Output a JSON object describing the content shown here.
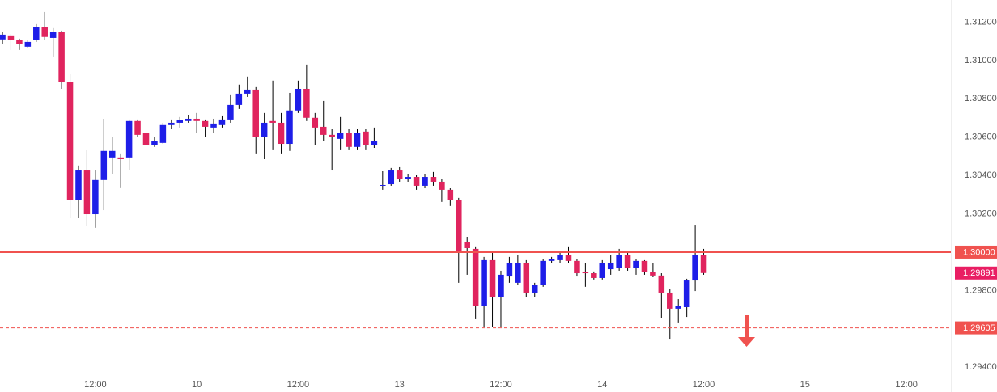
{
  "chart_data": {
    "type": "candlestick",
    "up_color": "#1e1ee8",
    "down_color": "#e0245e",
    "wick_color": "#000000",
    "grid": false,
    "x": [
      0,
      1,
      2,
      3,
      4,
      5,
      6,
      7,
      8,
      9,
      10,
      11,
      12,
      13,
      14,
      15,
      16,
      17,
      18,
      19,
      20,
      21,
      22,
      23,
      24,
      25,
      26,
      27,
      28,
      29,
      30,
      31,
      32,
      33,
      34,
      35,
      36,
      37,
      38,
      39,
      40,
      41,
      42,
      43,
      44,
      45,
      46,
      47,
      48,
      49,
      50,
      51,
      52,
      53,
      54,
      55,
      56,
      57,
      58,
      59,
      60,
      61,
      62,
      63,
      64,
      65,
      66,
      67,
      68,
      69,
      70,
      71,
      72,
      73,
      74,
      75,
      76,
      77,
      78,
      79,
      80,
      81,
      82,
      83
    ],
    "open": [
      1.3111,
      1.31131,
      1.31106,
      1.31072,
      1.31106,
      1.31173,
      1.31118,
      1.31148,
      1.30886,
      1.30274,
      1.3043,
      1.30198,
      1.30376,
      1.30494,
      1.30494,
      1.30494,
      1.30684,
      1.3062,
      1.30557,
      1.3057,
      1.30663,
      1.30675,
      1.30684,
      1.30696,
      1.30684,
      1.3065,
      1.30663,
      1.30692,
      1.30768,
      1.30827,
      1.30848,
      1.30599,
      1.30684,
      1.30675,
      1.30565,
      1.30739,
      1.30852,
      1.30701,
      1.30654,
      1.30612,
      1.30591,
      1.3062,
      1.30549,
      1.30629,
      1.30557,
      1.30346,
      1.30354,
      1.3043,
      1.3038,
      1.30392,
      1.30346,
      1.30392,
      1.30367,
      1.30325,
      1.30274,
      1.30051,
      1.30017,
      1.29721,
      1.29958,
      1.29764,
      1.29873,
      1.2984,
      1.29945,
      1.29789,
      1.29831,
      1.29954,
      1.29958,
      1.29987,
      1.29954,
      1.29895,
      1.2989,
      1.29865,
      1.29911,
      1.29916,
      1.29987,
      1.29916,
      1.29954,
      1.29895,
      1.29878,
      1.29789,
      1.29705,
      1.29713,
      1.29852,
      1.29987
    ],
    "high": [
      1.31148,
      1.31139,
      1.31114,
      1.31106,
      1.3119,
      1.31253,
      1.31169,
      1.31156,
      1.30928,
      1.30452,
      1.30536,
      1.3043,
      1.30696,
      1.30599,
      1.30515,
      1.30692,
      1.30692,
      1.30641,
      1.30599,
      1.30675,
      1.30692,
      1.30705,
      1.30717,
      1.30726,
      1.30692,
      1.30696,
      1.30713,
      1.30823,
      1.30874,
      1.30916,
      1.30861,
      1.30726,
      1.30895,
      1.30726,
      1.30831,
      1.30895,
      1.30979,
      1.30726,
      1.30789,
      1.30641,
      1.30705,
      1.30641,
      1.30641,
      1.30641,
      1.3065,
      1.30422,
      1.30439,
      1.30443,
      1.30409,
      1.30401,
      1.30409,
      1.30418,
      1.3038,
      1.30333,
      1.30283,
      1.3008,
      1.3003,
      1.29975,
      1.30008,
      1.29903,
      1.29975,
      1.29987,
      1.29958,
      1.2984,
      1.29966,
      1.29975,
      1.30008,
      1.3003,
      1.29966,
      1.29945,
      1.29899,
      1.29958,
      1.29987,
      1.30017,
      1.30008,
      1.29966,
      1.29958,
      1.29945,
      1.2989,
      1.29806,
      1.29755,
      1.29861,
      1.30143,
      1.30017
    ],
    "low": [
      1.31085,
      1.31055,
      1.31055,
      1.31063,
      1.31097,
      1.31106,
      1.31021,
      1.30852,
      1.30177,
      1.30177,
      1.30135,
      1.30127,
      1.30219,
      1.30409,
      1.30338,
      1.3043,
      1.30599,
      1.30544,
      1.30549,
      1.30565,
      1.30641,
      1.3065,
      1.30675,
      1.3062,
      1.30599,
      1.3062,
      1.3065,
      1.30675,
      1.30747,
      1.3081,
      1.30515,
      1.30485,
      1.30536,
      1.30515,
      1.30528,
      1.30726,
      1.30684,
      1.30557,
      1.30578,
      1.3043,
      1.30536,
      1.30536,
      1.30536,
      1.30536,
      1.30544,
      1.30325,
      1.30346,
      1.30367,
      1.30367,
      1.30325,
      1.30333,
      1.30346,
      1.30262,
      1.30241,
      1.2984,
      1.29882,
      1.2965,
      1.29608,
      1.29608,
      1.29608,
      1.2984,
      1.29831,
      1.29764,
      1.29764,
      1.29819,
      1.29945,
      1.29945,
      1.29945,
      1.29873,
      1.29819,
      1.29857,
      1.29857,
      1.29882,
      1.29903,
      1.29903,
      1.29882,
      1.29882,
      1.29869,
      1.29658,
      1.29544,
      1.29629,
      1.29662,
      1.29797,
      1.29882
    ],
    "close": [
      1.31135,
      1.31106,
      1.31085,
      1.31097,
      1.31173,
      1.31123,
      1.31148,
      1.30886,
      1.30274,
      1.3043,
      1.30198,
      1.30376,
      1.30528,
      1.30528,
      1.30485,
      1.30684,
      1.30612,
      1.30557,
      1.30578,
      1.30663,
      1.30675,
      1.30688,
      1.30696,
      1.30684,
      1.30654,
      1.30671,
      1.30692,
      1.30768,
      1.30827,
      1.30848,
      1.30599,
      1.30675,
      1.30675,
      1.30565,
      1.30739,
      1.30852,
      1.30701,
      1.3065,
      1.30612,
      1.30599,
      1.3062,
      1.30549,
      1.3062,
      1.30557,
      1.30578,
      1.3035,
      1.3043,
      1.3038,
      1.30392,
      1.30346,
      1.30392,
      1.30367,
      1.30325,
      1.30274,
      1.30008,
      1.30021,
      1.29721,
      1.29958,
      1.29764,
      1.29882,
      1.29945,
      1.29945,
      1.29789,
      1.29831,
      1.29954,
      1.29966,
      1.29987,
      1.29954,
      1.2989,
      1.2989,
      1.29865,
      1.29945,
      1.29945,
      1.29987,
      1.29916,
      1.29954,
      1.29895,
      1.29878,
      1.29789,
      1.29705,
      1.29721,
      1.29852,
      1.29987,
      1.29891
    ],
    "xlim": [
      -0.29,
      112.26
    ],
    "xticks": [
      {
        "value": 11,
        "label": "12:00"
      },
      {
        "value": 23,
        "label": "10"
      },
      {
        "value": 35,
        "label": "12:00"
      },
      {
        "value": 47,
        "label": "13"
      },
      {
        "value": 59,
        "label": "12:00"
      },
      {
        "value": 71,
        "label": "14"
      },
      {
        "value": 83,
        "label": "12:00"
      },
      {
        "value": 95,
        "label": "15"
      },
      {
        "value": 107,
        "label": "12:00"
      }
    ],
    "ylim": [
      1.2927,
      1.31316
    ],
    "yticks": [
      {
        "value": 1.312,
        "label": "1.31200"
      },
      {
        "value": 1.31,
        "label": "1.31000"
      },
      {
        "value": 1.308,
        "label": "1.30800"
      },
      {
        "value": 1.306,
        "label": "1.30600"
      },
      {
        "value": 1.304,
        "label": "1.30400"
      },
      {
        "value": 1.302,
        "label": "1.30200"
      },
      {
        "value": 1.298,
        "label": "1.29800"
      },
      {
        "value": 1.294,
        "label": "1.29400"
      }
    ],
    "levels": [
      {
        "value": 1.3,
        "label": "1.30000",
        "style": "solid",
        "color": "#f0524f"
      },
      {
        "value": 1.29605,
        "label": "1.29605",
        "style": "dashed",
        "color": "#f0524f"
      }
    ],
    "last_price": {
      "value": 1.29891,
      "label": "1.29891",
      "color": "#e91e63"
    }
  }
}
